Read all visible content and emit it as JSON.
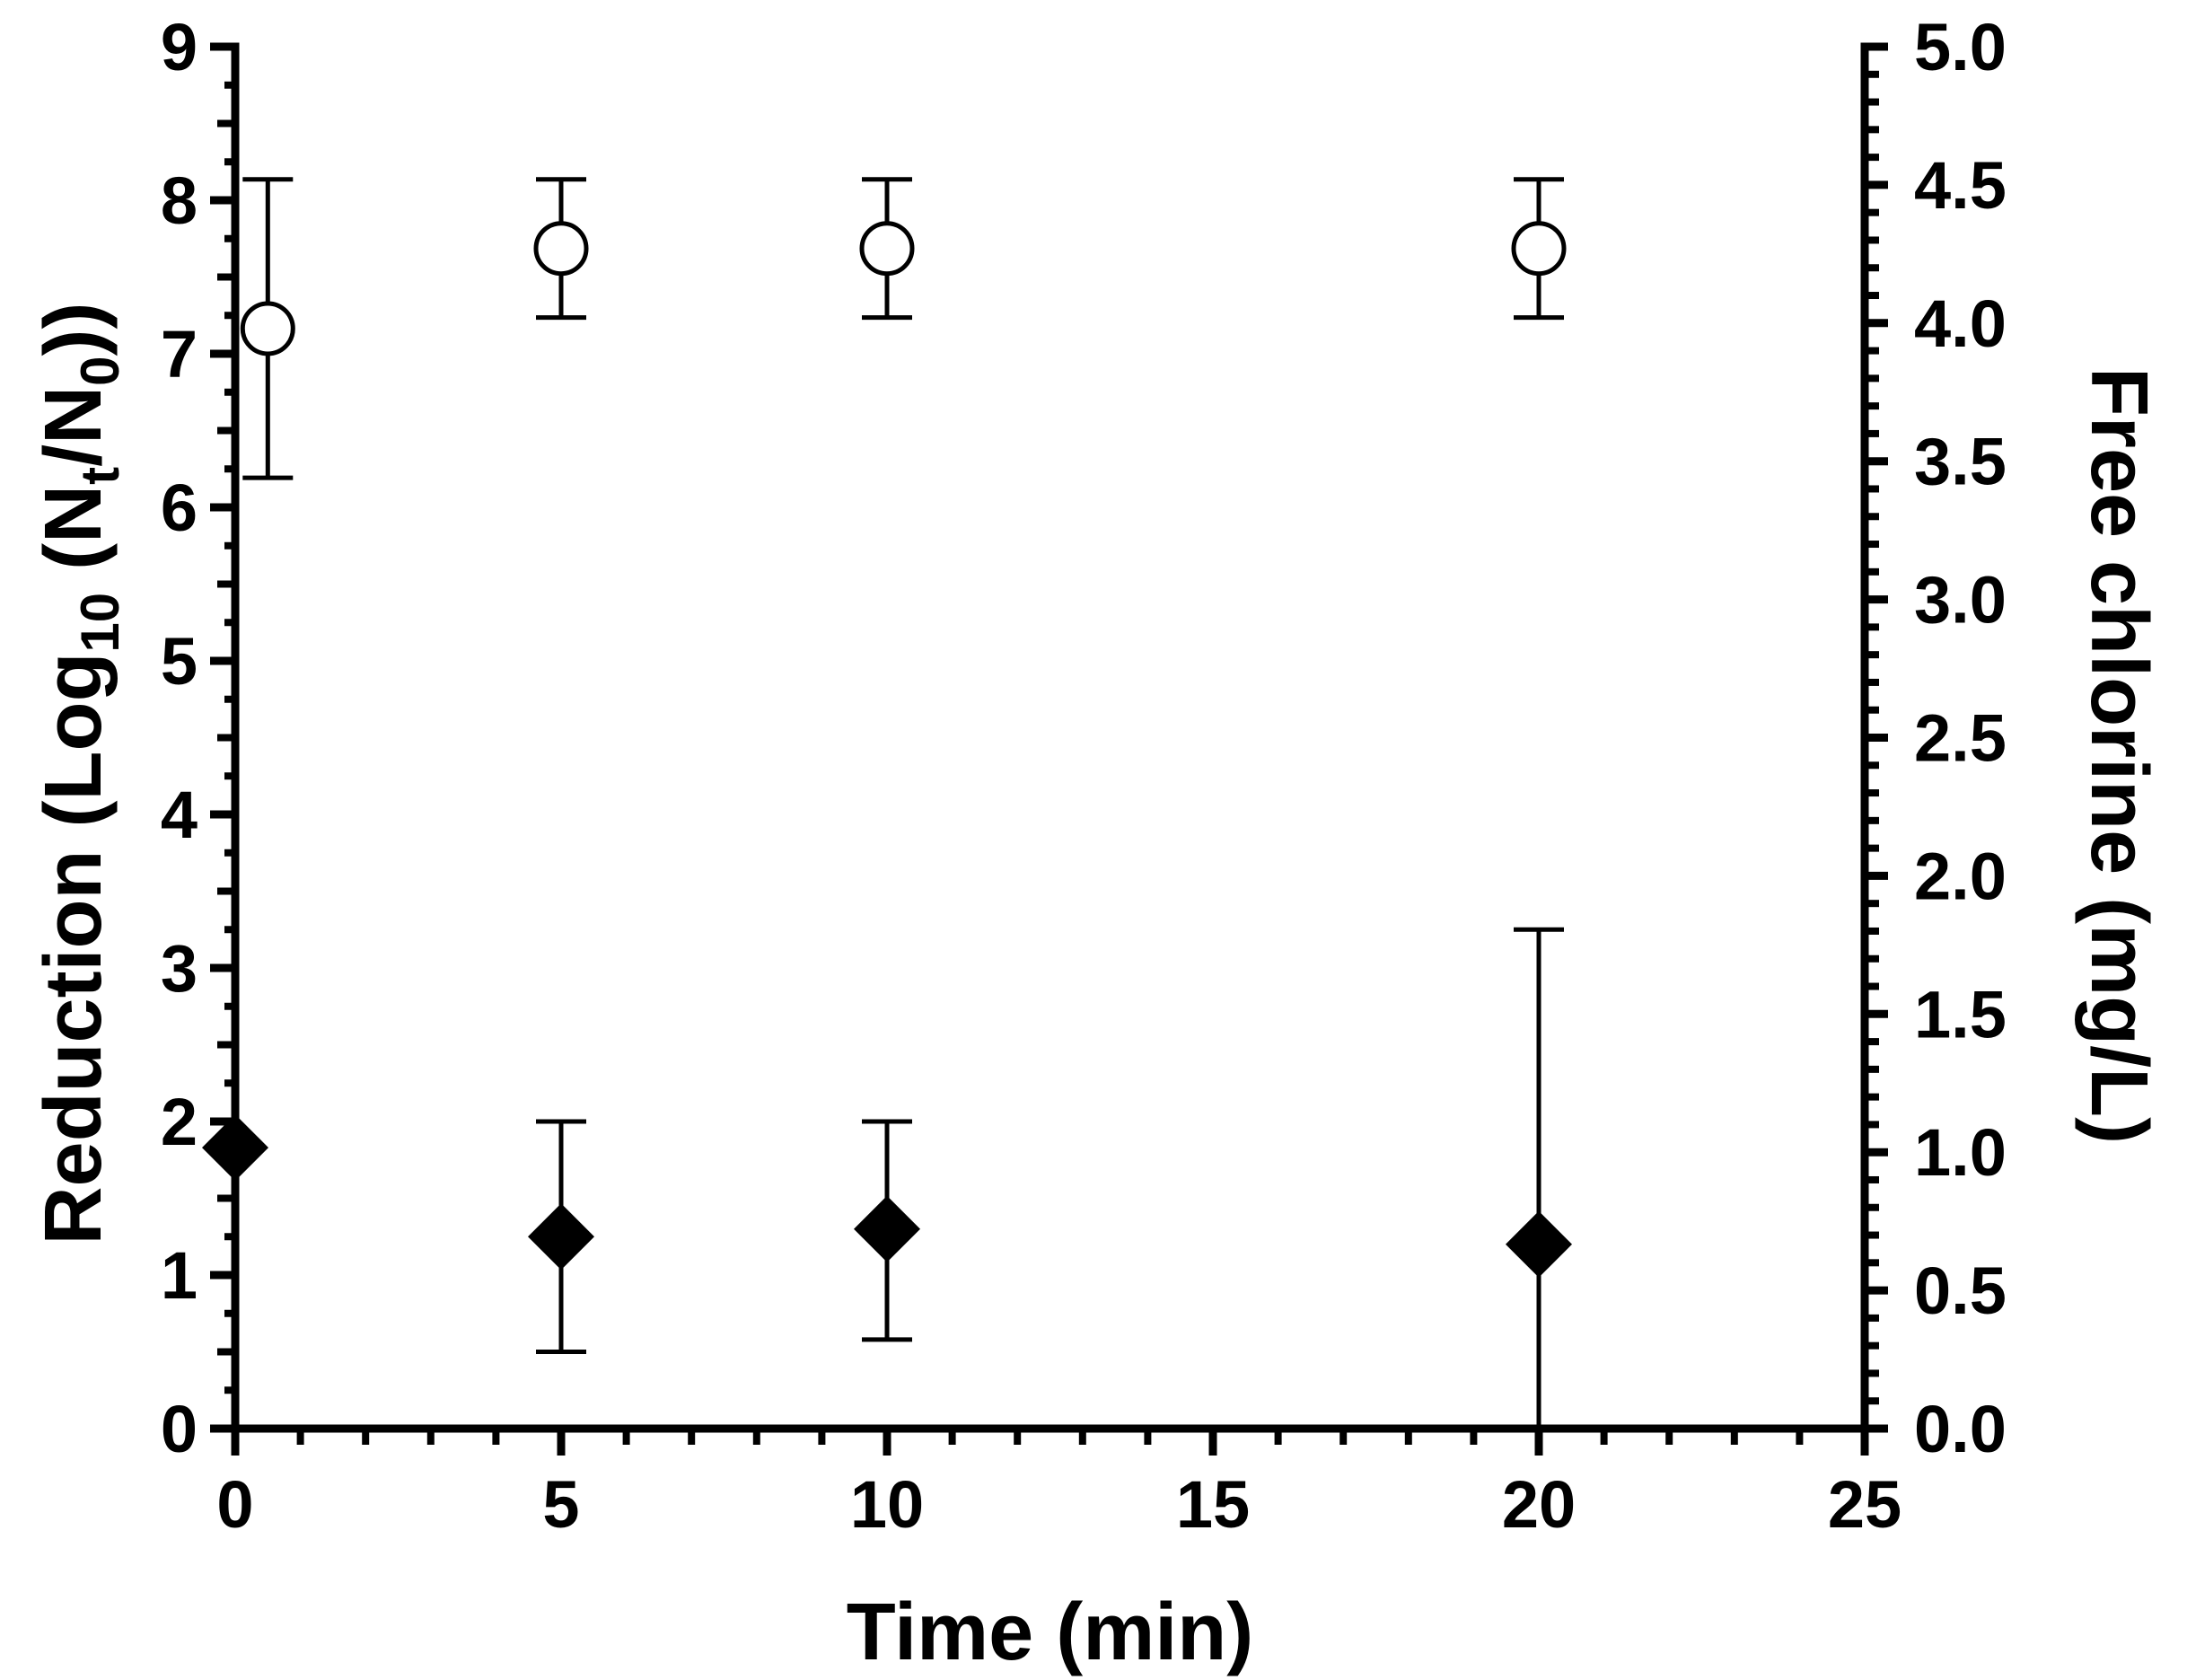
{
  "chart_data": {
    "type": "scatter",
    "xlabel": "Time (min)",
    "ylabel_parts": [
      "Reduction (Log",
      "10",
      " (N",
      "t",
      "/N",
      "0",
      "))"
    ],
    "y2label": "Free chlorine (mg/L)",
    "xlim": [
      0,
      25
    ],
    "ylim": [
      0,
      9
    ],
    "y2lim": [
      0,
      5.0
    ],
    "x_ticks": [
      "0",
      "5",
      "10",
      "15",
      "20",
      "25"
    ],
    "y_ticks": [
      "0",
      "1",
      "2",
      "3",
      "4",
      "5",
      "6",
      "7",
      "8",
      "9"
    ],
    "y2_ticks": [
      "0.0",
      "0.5",
      "1.0",
      "1.5",
      "2.0",
      "2.5",
      "3.0",
      "3.5",
      "4.0",
      "4.5",
      "5.0"
    ],
    "grid": false,
    "series": [
      {
        "marker": "open-circle",
        "axis": "right",
        "points": [
          {
            "x": 0.5,
            "y": 3.98,
            "err_low": 3.44,
            "err_high": 4.52
          },
          {
            "x": 5,
            "y": 4.27,
            "err_low": 4.02,
            "err_high": 4.52
          },
          {
            "x": 10,
            "y": 4.27,
            "err_low": 4.02,
            "err_high": 4.52
          },
          {
            "x": 20,
            "y": 4.27,
            "err_low": 4.02,
            "err_high": 4.52
          }
        ]
      },
      {
        "marker": "filled-diamond",
        "axis": "left",
        "points": [
          {
            "x": 0,
            "y": 1.83,
            "err_low": 1.83,
            "err_high": 1.83
          },
          {
            "x": 5,
            "y": 1.25,
            "err_low": 0.5,
            "err_high": 2.0
          },
          {
            "x": 10,
            "y": 1.3,
            "err_low": 0.58,
            "err_high": 2.0
          },
          {
            "x": 20,
            "y": 1.2,
            "err_low": 0.0,
            "err_high": 3.25
          }
        ]
      }
    ]
  }
}
